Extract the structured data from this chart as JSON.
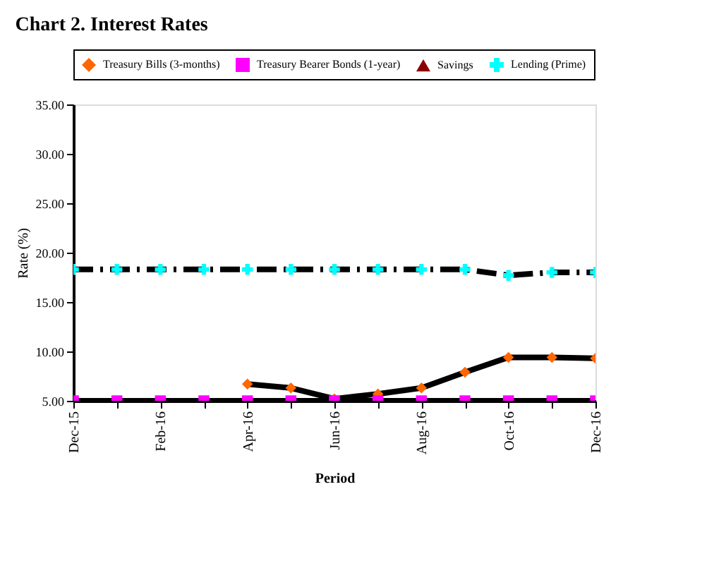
{
  "chart_data": {
    "type": "line",
    "title": "Chart 2. Interest Rates",
    "xlabel": "Period",
    "ylabel": "Rate (%)",
    "categories": [
      "Dec-15",
      null,
      "Feb-16",
      null,
      "Apr-16",
      null,
      "Jun-16",
      null,
      "Aug-16",
      null,
      "Oct-16",
      null,
      "Dec-16"
    ],
    "series": [
      {
        "name": "Treasury Bills (3-months)",
        "color": "#ff6600",
        "marker": "diamond",
        "line_style": "solid",
        "values": [
          null,
          null,
          null,
          null,
          6.7,
          6.3,
          5.2,
          5.7,
          6.3,
          7.9,
          9.4,
          9.4,
          9.3
        ]
      },
      {
        "name": "Treasury Bearer Bonds (1-year)",
        "color": "#ff00ff",
        "marker": "square",
        "line_style": "solid",
        "values": [
          5.0,
          5.0,
          5.0,
          5.0,
          5.0,
          5.0,
          5.0,
          5.0,
          5.0,
          5.0,
          5.0,
          5.0,
          5.0
        ]
      },
      {
        "name": "Savings",
        "color": "#8b0000",
        "marker": "triangle",
        "line_style": "dotted",
        "values": [
          null,
          null,
          null,
          null,
          null,
          null,
          null,
          null,
          null,
          null,
          null,
          null,
          null
        ]
      },
      {
        "name": "Lending (Prime)",
        "color": "#00ffff",
        "marker": "cross",
        "line_style": "dashed",
        "values": [
          18.3,
          18.3,
          18.3,
          18.3,
          18.3,
          18.3,
          18.3,
          18.3,
          18.3,
          18.3,
          17.7,
          18.0,
          18.0
        ]
      }
    ],
    "ylim": [
      5,
      35
    ],
    "yticks": [
      {
        "value": 5,
        "label": "5.00"
      },
      {
        "value": 10,
        "label": "10.00"
      },
      {
        "value": 15,
        "label": "15.00"
      },
      {
        "value": 20,
        "label": "20.00"
      },
      {
        "value": 25,
        "label": "25.00"
      },
      {
        "value": 30,
        "label": "30.00"
      },
      {
        "value": 35,
        "label": "35.00"
      }
    ],
    "grid": false,
    "legend": "top"
  }
}
